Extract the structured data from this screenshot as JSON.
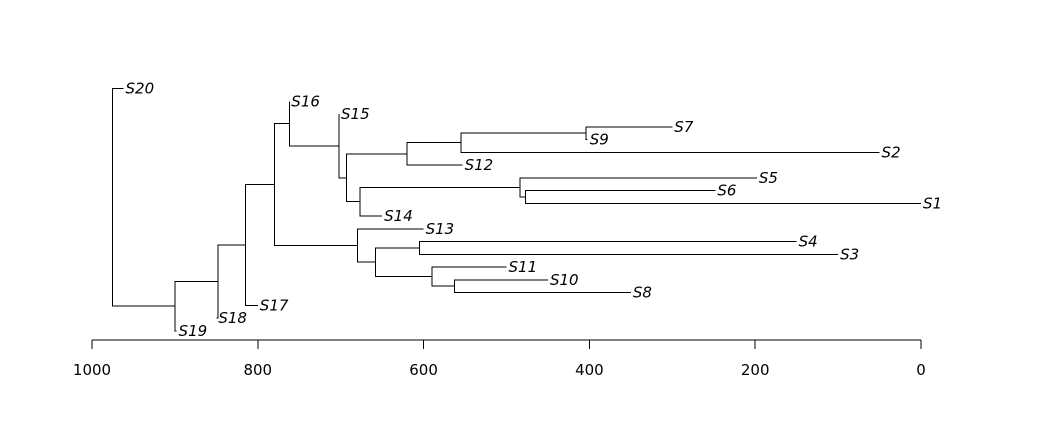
{
  "chart_data": {
    "type": "dendrogram",
    "orientation": "leaves-right",
    "axis": {
      "ticks": [
        1000,
        800,
        600,
        400,
        200,
        0
      ],
      "range": [
        1000,
        0
      ]
    },
    "leaf_order": [
      "S20",
      "S16",
      "S15",
      "S7",
      "S9",
      "S2",
      "S12",
      "S5",
      "S6",
      "S1",
      "S14",
      "S13",
      "S4",
      "S3",
      "S11",
      "S10",
      "S8",
      "S17",
      "S18",
      "S19"
    ],
    "leaves": {
      "S20": 962,
      "S16": 762,
      "S15": 702,
      "S7": 300,
      "S9": 402,
      "S2": 50,
      "S12": 553,
      "S5": 198,
      "S6": 248,
      "S1": 0,
      "S14": 650,
      "S13": 600,
      "S4": 150,
      "S3": 100,
      "S11": 500,
      "S10": 450,
      "S8": 350,
      "S17": 800,
      "S18": 850,
      "S19": 898
    },
    "merges": [
      {
        "id": "m1",
        "height": 404,
        "children": [
          "S7",
          "S9"
        ]
      },
      {
        "id": "m2",
        "height": 555,
        "children": [
          "m1",
          "S2"
        ]
      },
      {
        "id": "m3",
        "height": 620,
        "children": [
          "m2",
          "S12"
        ]
      },
      {
        "id": "m4",
        "height": 477,
        "children": [
          "S6",
          "S1"
        ]
      },
      {
        "id": "m5",
        "height": 484,
        "children": [
          "S5",
          "m4"
        ]
      },
      {
        "id": "m6",
        "height": 677,
        "children": [
          "m5",
          "S14"
        ]
      },
      {
        "id": "m7",
        "height": 693,
        "children": [
          "m3",
          "m6"
        ]
      },
      {
        "id": "m8",
        "height": 702,
        "children": [
          "S15",
          "m7"
        ]
      },
      {
        "id": "m9",
        "height": 762,
        "children": [
          "S16",
          "m8"
        ]
      },
      {
        "id": "m10",
        "height": 605,
        "children": [
          "S4",
          "S3"
        ]
      },
      {
        "id": "m11",
        "height": 563,
        "children": [
          "S10",
          "S8"
        ]
      },
      {
        "id": "m12",
        "height": 590,
        "children": [
          "S11",
          "m11"
        ]
      },
      {
        "id": "m13",
        "height": 658,
        "children": [
          "m10",
          "m12"
        ]
      },
      {
        "id": "m14",
        "height": 680,
        "children": [
          "S13",
          "m13"
        ]
      },
      {
        "id": "m15",
        "height": 780,
        "children": [
          "m9",
          "m14"
        ]
      },
      {
        "id": "m16",
        "height": 815,
        "children": [
          "m15",
          "S17"
        ]
      },
      {
        "id": "m17",
        "height": 848,
        "children": [
          "m16",
          "S18"
        ]
      },
      {
        "id": "m18",
        "height": 900,
        "children": [
          "m17",
          "S19"
        ]
      },
      {
        "id": "m19",
        "height": 975,
        "children": [
          "S20",
          "m18"
        ]
      }
    ]
  }
}
